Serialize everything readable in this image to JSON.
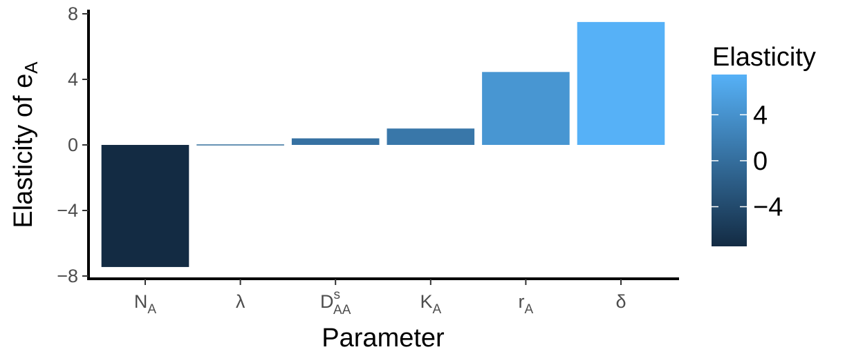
{
  "chart_data": {
    "type": "bar",
    "categories": [
      "N_A",
      "λ",
      "D^s_AA",
      "K_A",
      "r_A",
      "δ"
    ],
    "category_labels": [
      {
        "base": "N",
        "sub": "A",
        "sup": ""
      },
      {
        "base": "λ",
        "sub": "",
        "sup": ""
      },
      {
        "base": "D",
        "sub": "AA",
        "sup": "s"
      },
      {
        "base": "K",
        "sub": "A",
        "sup": ""
      },
      {
        "base": "r",
        "sub": "A",
        "sup": ""
      },
      {
        "base": "δ",
        "sub": "",
        "sup": ""
      }
    ],
    "values": [
      -7.45,
      -0.03,
      0.4,
      1.0,
      4.45,
      7.5
    ],
    "xlabel": "Parameter",
    "ylabel": {
      "base": "Elasticity of  e",
      "sub": "A"
    },
    "ylim": [
      -8,
      8
    ],
    "yticks": [
      -8,
      -4,
      0,
      4,
      8
    ],
    "ytick_labels": [
      "−8",
      "−4",
      "0",
      "4",
      "8"
    ],
    "grid": false,
    "legend": {
      "title": "Elasticity",
      "placement": "right",
      "type": "colorbar",
      "range": [
        -7.45,
        7.5
      ],
      "ticks": [
        4,
        0,
        -4
      ],
      "tick_labels": [
        "4",
        "0",
        "−4"
      ],
      "color_low": "#132b43",
      "color_high": "#56b1f7"
    }
  }
}
